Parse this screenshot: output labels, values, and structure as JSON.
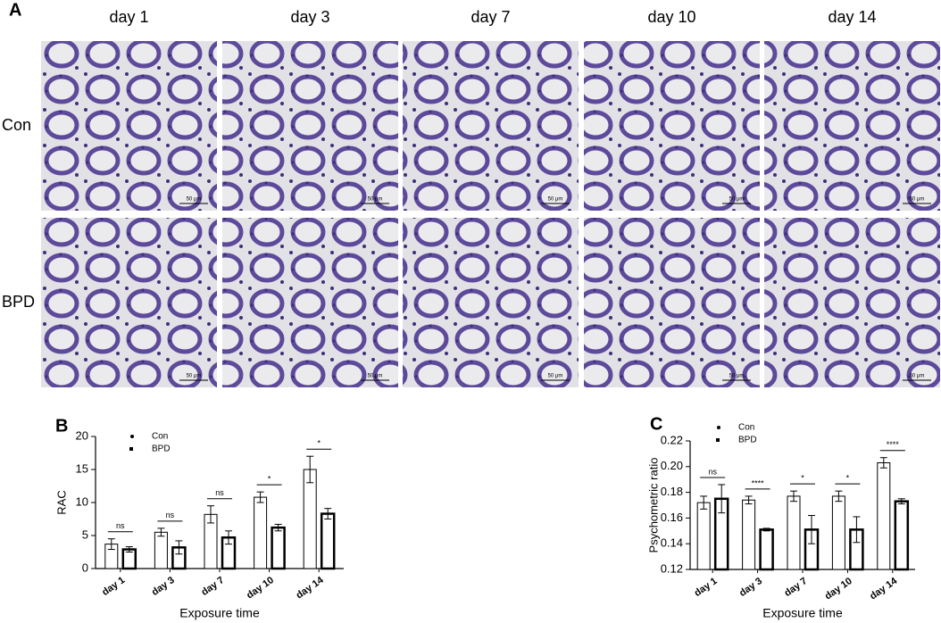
{
  "panel_a": {
    "label": "A",
    "columns": [
      "day 1",
      "day 3",
      "day 7",
      "day 10",
      "day 14"
    ],
    "rows": [
      "Con",
      "BPD"
    ],
    "scale_bar": "50 μm"
  },
  "chart_data": [
    {
      "type": "bar",
      "panel": "B",
      "ylabel": "RAC",
      "xlabel": "Exposure time",
      "categories": [
        "day 1",
        "day 3",
        "day 7",
        "day 10",
        "day 14"
      ],
      "series": [
        {
          "name": "Con",
          "color": "#ffffff",
          "values": [
            3.7,
            5.5,
            8.2,
            10.8,
            15.0
          ],
          "errors": [
            0.8,
            0.6,
            1.3,
            0.8,
            2.0
          ]
        },
        {
          "name": "BPD",
          "color": "#ffffff",
          "values": [
            2.9,
            3.2,
            4.7,
            6.2,
            8.3
          ],
          "errors": [
            0.4,
            1.0,
            1.0,
            0.5,
            0.8
          ]
        }
      ],
      "annotations": [
        "ns",
        "ns",
        "ns",
        "*",
        "*"
      ],
      "ylim": [
        0,
        20
      ],
      "yticks": [
        0,
        5,
        10,
        15,
        20
      ],
      "edgecolor": "#000000"
    },
    {
      "type": "bar",
      "panel": "C",
      "ylabel": "Psychometric ratio",
      "xlabel": "Exposure time",
      "categories": [
        "day 1",
        "day 3",
        "day 7",
        "day 10",
        "day 14"
      ],
      "series": [
        {
          "name": "Con",
          "color": "#ffffff",
          "values": [
            0.172,
            0.174,
            0.177,
            0.177,
            0.203
          ],
          "errors": [
            0.005,
            0.003,
            0.004,
            0.004,
            0.004
          ]
        },
        {
          "name": "BPD",
          "color": "#ffffff",
          "values": [
            0.175,
            0.151,
            0.151,
            0.151,
            0.173
          ],
          "errors": [
            0.011,
            0.001,
            0.011,
            0.01,
            0.002
          ]
        }
      ],
      "annotations": [
        "ns",
        "****",
        "*",
        "*",
        "****"
      ],
      "ylim": [
        0.12,
        0.22
      ],
      "yticks": [
        0.12,
        0.14,
        0.16,
        0.18,
        {
          "value": 0.2,
          "label": "0.20"
        },
        0.22
      ],
      "edgecolor": "#000000"
    }
  ]
}
